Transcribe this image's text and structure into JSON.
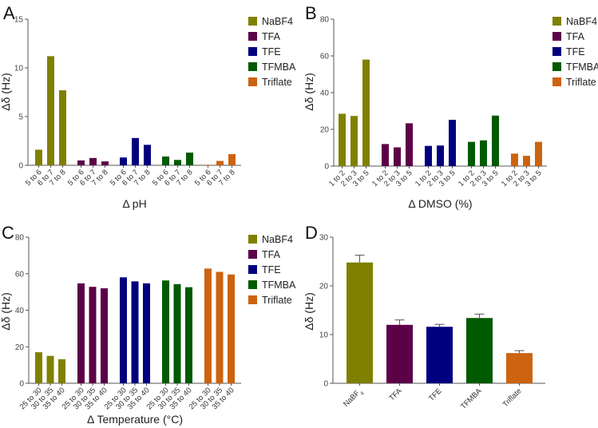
{
  "colors": {
    "NaBF4": "#808000",
    "TFA": "#5c0048",
    "TFE": "#00007f",
    "TFMBA": "#005a00",
    "Triflate": "#cc6310"
  },
  "legend": [
    "NaBF4",
    "TFA",
    "TFE",
    "TFMBA",
    "Triflate"
  ],
  "chart_data": [
    {
      "panel": "A",
      "type": "bar",
      "xlabel": "Δ pH",
      "ylabel": "Δδ (Hz)",
      "ylim": [
        0,
        15
      ],
      "yticks": [
        0,
        5,
        10,
        15
      ],
      "categories": [
        "5 to 6",
        "6 to 7",
        "7 to 8"
      ],
      "series": [
        {
          "name": "NaBF4",
          "values": [
            1.6,
            11.2,
            7.7
          ]
        },
        {
          "name": "TFA",
          "values": [
            0.5,
            0.75,
            0.4
          ]
        },
        {
          "name": "TFE",
          "values": [
            0.8,
            2.8,
            2.1
          ]
        },
        {
          "name": "TFMBA",
          "values": [
            0.9,
            0.55,
            1.3
          ]
        },
        {
          "name": "Triflate",
          "values": [
            0.05,
            0.45,
            1.15
          ]
        }
      ],
      "legend_position": "right"
    },
    {
      "panel": "B",
      "type": "bar",
      "xlabel": "Δ DMSO (%)",
      "ylabel": "Δδ (Hz)",
      "ylim": [
        0,
        80
      ],
      "yticks": [
        0,
        20,
        40,
        60,
        80
      ],
      "categories": [
        "1 to 2",
        "2 to 3",
        "3 to 5"
      ],
      "series": [
        {
          "name": "NaBF4",
          "values": [
            28.5,
            27.3,
            58
          ]
        },
        {
          "name": "TFA",
          "values": [
            12,
            10.2,
            23.3
          ]
        },
        {
          "name": "TFE",
          "values": [
            11,
            11.2,
            25.2
          ]
        },
        {
          "name": "TFMBA",
          "values": [
            13.2,
            14,
            27.5
          ]
        },
        {
          "name": "Triflate",
          "values": [
            6.8,
            5.6,
            13.2
          ]
        }
      ],
      "legend_position": "right"
    },
    {
      "panel": "C",
      "type": "bar",
      "xlabel": "Δ Temperature (°C)",
      "ylabel": "Δδ (Hz)",
      "ylim": [
        0,
        80
      ],
      "yticks": [
        0,
        20,
        40,
        60,
        80
      ],
      "categories": [
        "25 to 30",
        "30 to 35",
        "35 to 40"
      ],
      "series": [
        {
          "name": "NaBF4",
          "values": [
            17,
            15,
            13.2
          ]
        },
        {
          "name": "TFA",
          "values": [
            54.7,
            52.8,
            52
          ]
        },
        {
          "name": "TFE",
          "values": [
            58,
            55.8,
            54.7
          ]
        },
        {
          "name": "TFMBA",
          "values": [
            56.3,
            54.3,
            52.6
          ]
        },
        {
          "name": "Triflate",
          "values": [
            62.8,
            61,
            59.6
          ]
        }
      ],
      "legend_position": "right"
    },
    {
      "panel": "D",
      "type": "bar",
      "xlabel": "",
      "ylabel": "Δδ (Hz)",
      "ylim": [
        0,
        30
      ],
      "yticks": [
        0,
        10,
        20,
        30
      ],
      "categories": [
        "NaBF4",
        "TFA",
        "TFE",
        "TFMBA",
        "Triflate"
      ],
      "values": [
        24.8,
        12,
        11.6,
        13.4,
        6.2
      ],
      "error_upper": [
        1.5,
        1.0,
        0.5,
        0.8,
        0.5
      ]
    }
  ]
}
